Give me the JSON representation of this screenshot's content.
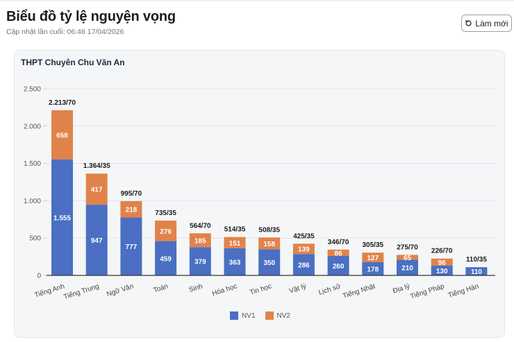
{
  "header": {
    "title": "Biểu đồ tỷ lệ nguyện vọng",
    "updated": "Cập nhật lần cuối: 06:46 17/04/2026",
    "refresh_label": "Làm mới",
    "refresh_icon": "refresh-icon"
  },
  "card": {
    "title": "THPT Chuyên Chu Văn An"
  },
  "colors": {
    "nv1": "#4a6fc3",
    "nv2": "#e0834a",
    "grid": "#e3e5e8",
    "axis": "#333333"
  },
  "chart_data": {
    "type": "bar",
    "stacked": true,
    "title": "THPT Chuyên Chu Văn An",
    "xlabel": "",
    "ylabel": "",
    "ylim": [
      0,
      2500
    ],
    "yticks": [
      0,
      500,
      1000,
      1500,
      2000,
      2500
    ],
    "ytick_labels": [
      "0",
      "500",
      "1.000",
      "1.500",
      "2.000",
      "2.500"
    ],
    "grid": true,
    "legend_position": "bottom",
    "categories": [
      "Tiếng Anh",
      "Tiếng Trung",
      "Ngữ Văn",
      "Toán",
      "Sinh",
      "Hóa học",
      "Tin học",
      "Vật lý",
      "Lịch sử",
      "Tiếng Nhật",
      "Địa lý",
      "Tiếng Pháp",
      "Tiếng Hàn"
    ],
    "series": [
      {
        "name": "NV1",
        "values": [
          1555,
          947,
          777,
          459,
          379,
          363,
          350,
          286,
          260,
          178,
          210,
          130,
          110
        ]
      },
      {
        "name": "NV2",
        "values": [
          658,
          417,
          218,
          276,
          185,
          151,
          158,
          139,
          86,
          127,
          65,
          96,
          0
        ]
      }
    ],
    "value_labels": {
      "NV1": [
        "1.555",
        "947",
        "777",
        "459",
        "379",
        "363",
        "350",
        "286",
        "260",
        "178",
        "210",
        "130",
        "110"
      ],
      "NV2": [
        "658",
        "417",
        "218",
        "276",
        "185",
        "151",
        "158",
        "139",
        "86",
        "127",
        "65",
        "96",
        ""
      ]
    },
    "total_labels": [
      "2.213/70",
      "1.364/35",
      "995/70",
      "735/35",
      "564/70",
      "514/35",
      "508/35",
      "425/35",
      "346/70",
      "305/35",
      "275/70",
      "226/70",
      "110/35"
    ]
  }
}
